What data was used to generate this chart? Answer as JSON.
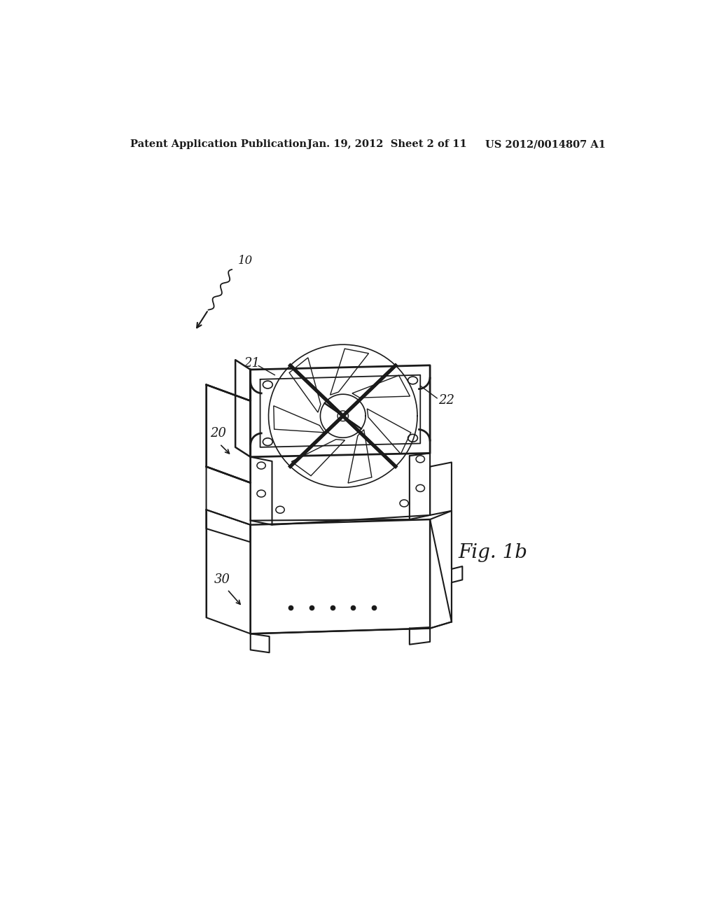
{
  "bg_color": "#ffffff",
  "line_color": "#1a1a1a",
  "header_left": "Patent Application Publication",
  "header_center": "Jan. 19, 2012  Sheet 2 of 11",
  "header_right": "US 2012/0014807 A1",
  "fig_label": "Fig. 1b",
  "label_10": "10",
  "label_20": "20",
  "label_21": "21",
  "label_22": "22",
  "label_30": "30"
}
